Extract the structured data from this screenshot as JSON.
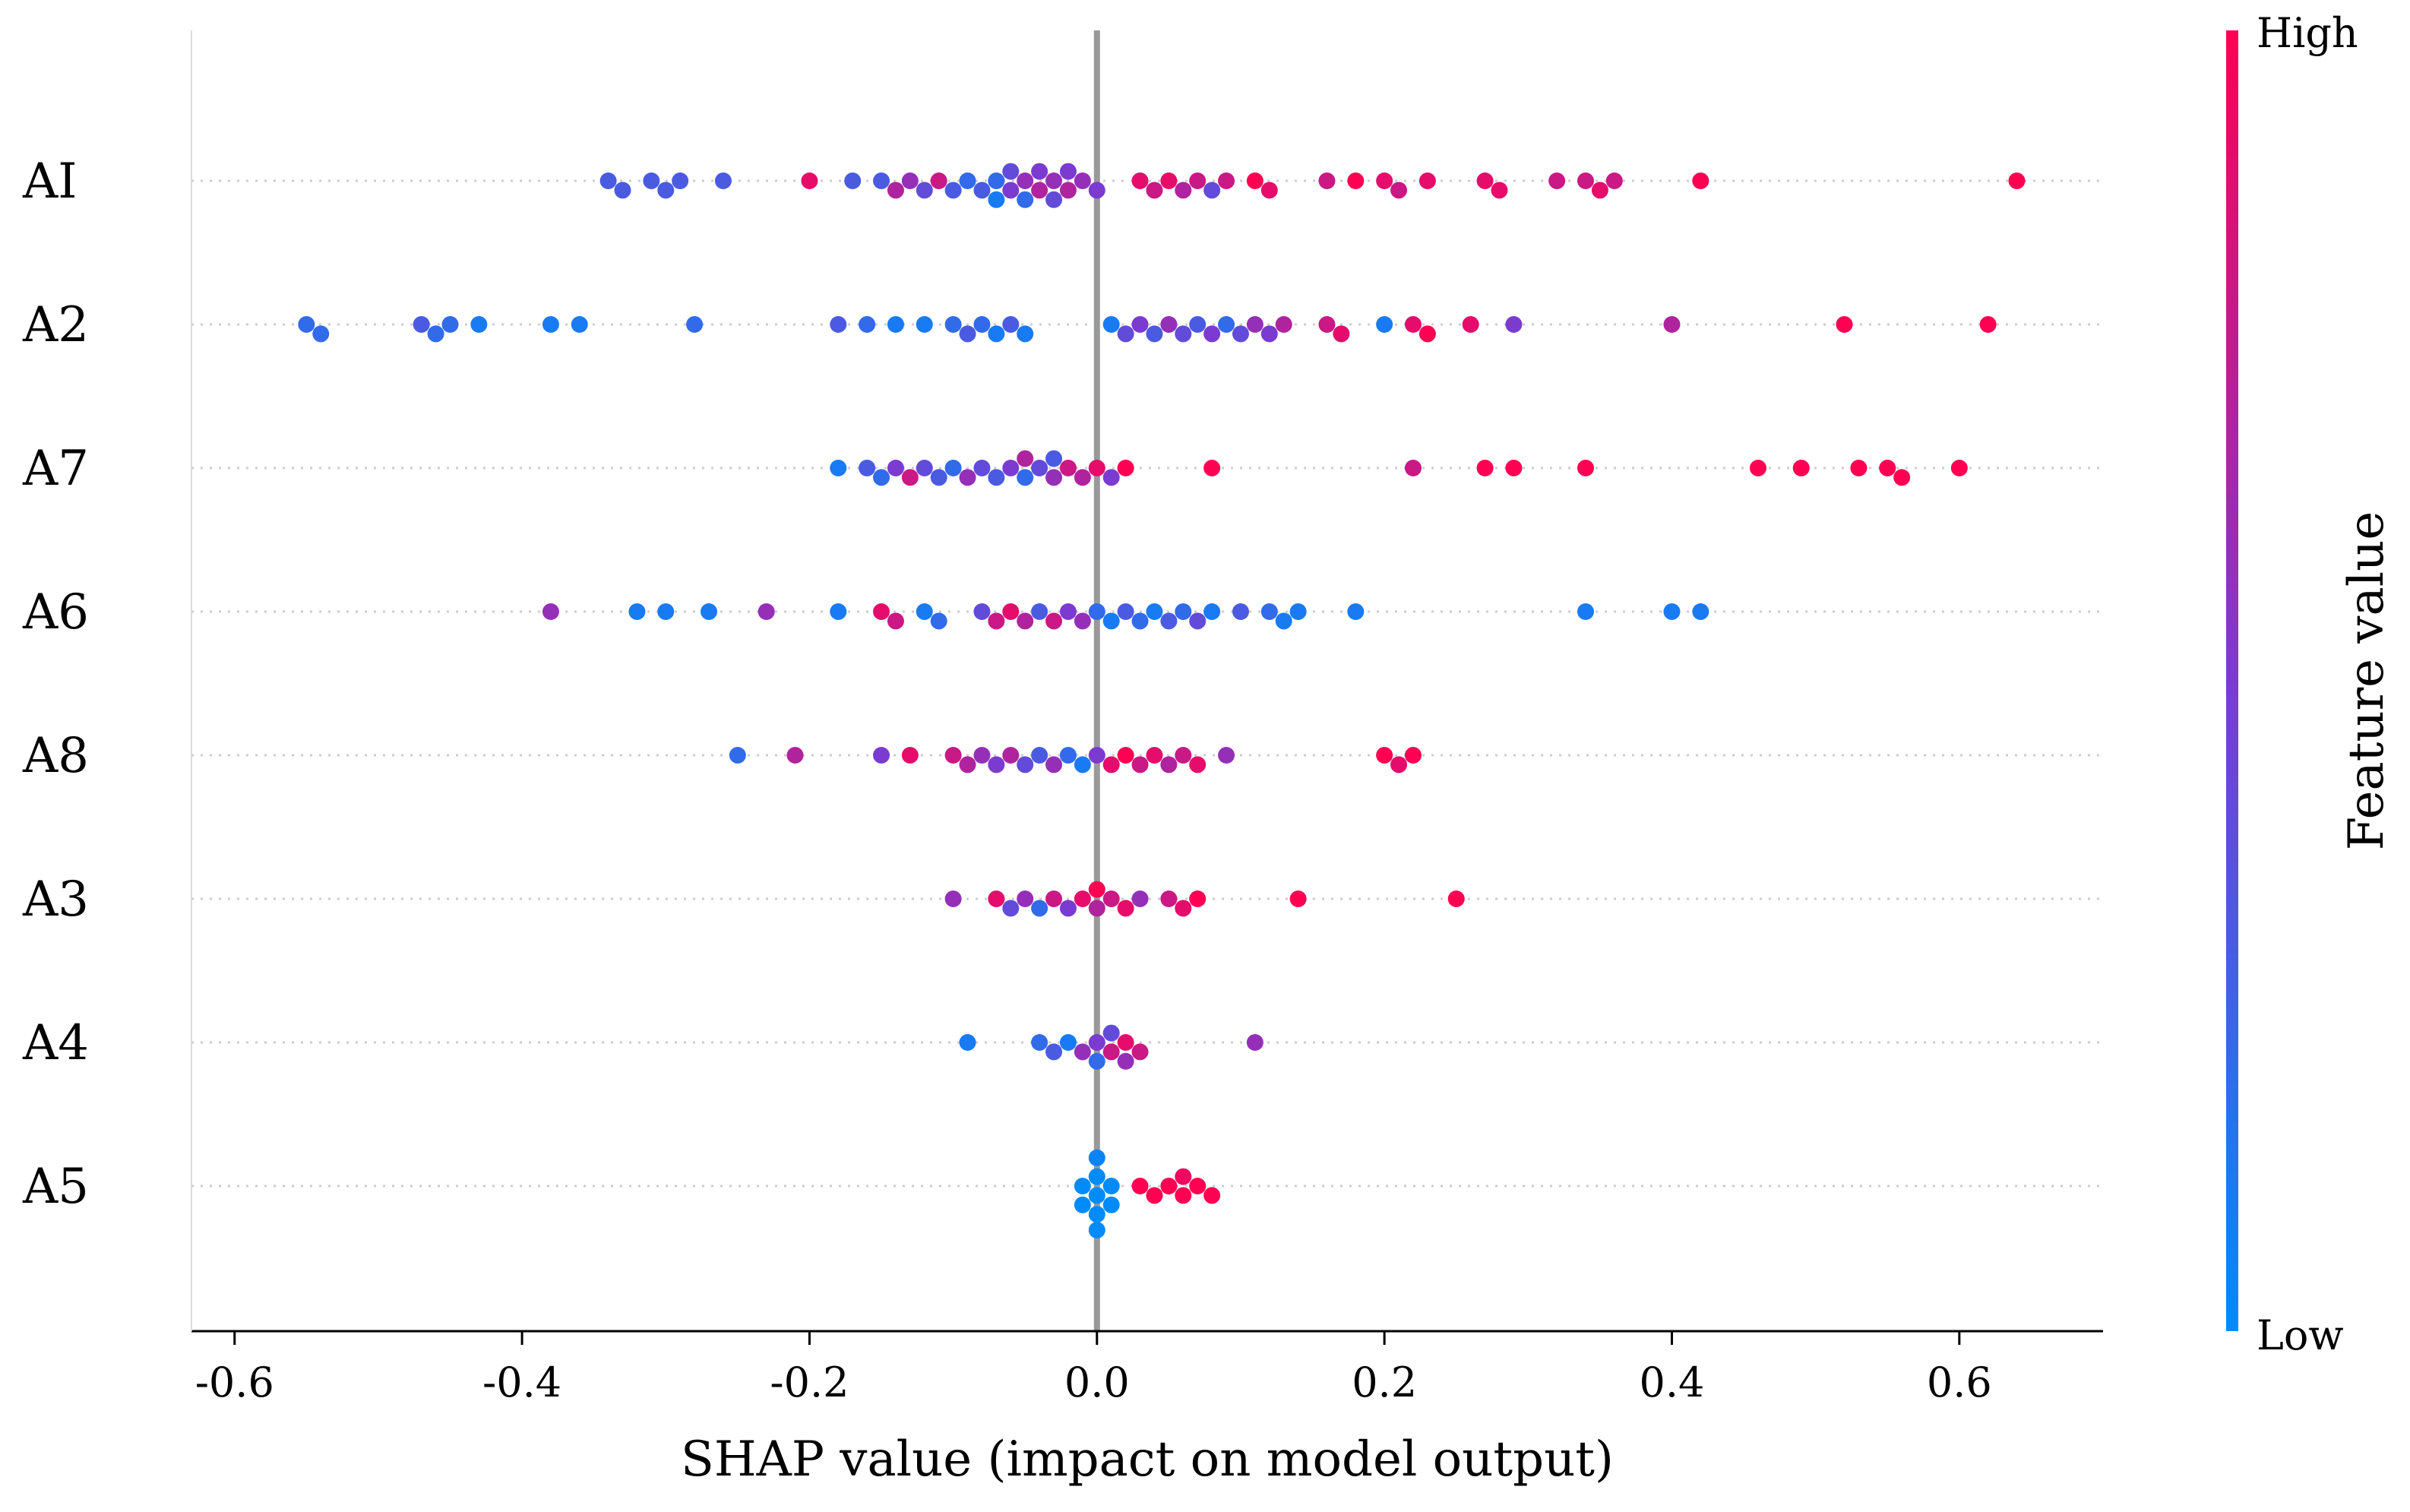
{
  "chart_data": {
    "type": "scatter",
    "subtype": "shap-beeswarm",
    "title": "",
    "xlabel": "SHAP value (impact on model output)",
    "ylabel": "",
    "xlim": [
      -0.63,
      0.7
    ],
    "xticks": [
      -0.6,
      -0.4,
      -0.2,
      0.0,
      0.2,
      0.4,
      0.6
    ],
    "xtick_labels": [
      "-0.6",
      "-0.4",
      "-0.2",
      "0.0",
      "0.2",
      "0.4",
      "0.6"
    ],
    "zero_line": 0.0,
    "grid": "dotted horizontal per feature",
    "colorbar": {
      "label": "Feature value",
      "high_label": "High",
      "low_label": "Low",
      "low_color": "#008bfb",
      "high_color": "#ff0052"
    },
    "features": [
      {
        "name": "AI",
        "points": [
          [
            -0.34,
            0.3
          ],
          [
            -0.33,
            0.3
          ],
          [
            -0.31,
            0.3
          ],
          [
            -0.3,
            0.3
          ],
          [
            -0.29,
            0.3
          ],
          [
            -0.26,
            0.3
          ],
          [
            -0.2,
            0.9
          ],
          [
            -0.17,
            0.3
          ],
          [
            -0.15,
            0.3
          ],
          [
            -0.14,
            0.7
          ],
          [
            -0.13,
            0.6
          ],
          [
            -0.12,
            0.4
          ],
          [
            -0.11,
            0.8
          ],
          [
            -0.1,
            0.3
          ],
          [
            -0.09,
            0.2
          ],
          [
            -0.08,
            0.3
          ],
          [
            -0.07,
            0.2
          ],
          [
            -0.07,
            0.1
          ],
          [
            -0.06,
            0.5
          ],
          [
            -0.06,
            0.4
          ],
          [
            -0.05,
            0.6
          ],
          [
            -0.05,
            0.2
          ],
          [
            -0.04,
            0.7
          ],
          [
            -0.04,
            0.5
          ],
          [
            -0.03,
            0.6
          ],
          [
            -0.03,
            0.4
          ],
          [
            -0.02,
            0.7
          ],
          [
            -0.02,
            0.5
          ],
          [
            -0.01,
            0.6
          ],
          [
            0.0,
            0.5
          ],
          [
            0.03,
            0.9
          ],
          [
            0.04,
            0.8
          ],
          [
            0.05,
            0.9
          ],
          [
            0.06,
            0.7
          ],
          [
            0.07,
            0.8
          ],
          [
            0.08,
            0.4
          ],
          [
            0.09,
            0.8
          ],
          [
            0.11,
            1.0
          ],
          [
            0.12,
            0.9
          ],
          [
            0.16,
            0.8
          ],
          [
            0.18,
            1.0
          ],
          [
            0.2,
            0.9
          ],
          [
            0.21,
            0.8
          ],
          [
            0.23,
            0.9
          ],
          [
            0.27,
            0.9
          ],
          [
            0.28,
            0.9
          ],
          [
            0.32,
            0.8
          ],
          [
            0.34,
            0.8
          ],
          [
            0.35,
            0.9
          ],
          [
            0.36,
            0.8
          ],
          [
            0.42,
            1.0
          ],
          [
            0.64,
            1.0
          ]
        ]
      },
      {
        "name": "A2",
        "points": [
          [
            -0.55,
            0.2
          ],
          [
            -0.54,
            0.2
          ],
          [
            -0.47,
            0.3
          ],
          [
            -0.46,
            0.2
          ],
          [
            -0.45,
            0.2
          ],
          [
            -0.43,
            0.1
          ],
          [
            -0.38,
            0.1
          ],
          [
            -0.36,
            0.1
          ],
          [
            -0.28,
            0.2
          ],
          [
            -0.18,
            0.3
          ],
          [
            -0.16,
            0.2
          ],
          [
            -0.14,
            0.1
          ],
          [
            -0.12,
            0.1
          ],
          [
            -0.1,
            0.2
          ],
          [
            -0.09,
            0.3
          ],
          [
            -0.08,
            0.2
          ],
          [
            -0.07,
            0.1
          ],
          [
            -0.06,
            0.3
          ],
          [
            -0.05,
            0.1
          ],
          [
            0.01,
            0.1
          ],
          [
            0.02,
            0.4
          ],
          [
            0.03,
            0.5
          ],
          [
            0.04,
            0.3
          ],
          [
            0.05,
            0.6
          ],
          [
            0.06,
            0.4
          ],
          [
            0.07,
            0.3
          ],
          [
            0.08,
            0.5
          ],
          [
            0.09,
            0.2
          ],
          [
            0.1,
            0.4
          ],
          [
            0.11,
            0.6
          ],
          [
            0.12,
            0.5
          ],
          [
            0.13,
            0.7
          ],
          [
            0.16,
            0.8
          ],
          [
            0.17,
            0.9
          ],
          [
            0.2,
            0.1
          ],
          [
            0.22,
            0.9
          ],
          [
            0.23,
            1.0
          ],
          [
            0.26,
            0.9
          ],
          [
            0.29,
            0.5
          ],
          [
            0.4,
            0.7
          ],
          [
            0.52,
            1.0
          ],
          [
            0.62,
            1.0
          ]
        ]
      },
      {
        "name": "A7",
        "points": [
          [
            -0.18,
            0.1
          ],
          [
            -0.16,
            0.3
          ],
          [
            -0.15,
            0.2
          ],
          [
            -0.14,
            0.5
          ],
          [
            -0.13,
            0.8
          ],
          [
            -0.12,
            0.4
          ],
          [
            -0.11,
            0.3
          ],
          [
            -0.1,
            0.2
          ],
          [
            -0.09,
            0.6
          ],
          [
            -0.08,
            0.4
          ],
          [
            -0.07,
            0.3
          ],
          [
            -0.06,
            0.5
          ],
          [
            -0.05,
            0.2
          ],
          [
            -0.05,
            0.7
          ],
          [
            -0.04,
            0.4
          ],
          [
            -0.03,
            0.6
          ],
          [
            -0.03,
            0.3
          ],
          [
            -0.02,
            0.8
          ],
          [
            -0.01,
            0.7
          ],
          [
            0.0,
            0.9
          ],
          [
            0.01,
            0.5
          ],
          [
            0.02,
            1.0
          ],
          [
            0.08,
            1.0
          ],
          [
            0.22,
            0.8
          ],
          [
            0.27,
            1.0
          ],
          [
            0.29,
            1.0
          ],
          [
            0.34,
            1.0
          ],
          [
            0.46,
            1.0
          ],
          [
            0.49,
            1.0
          ],
          [
            0.53,
            1.0
          ],
          [
            0.55,
            1.0
          ],
          [
            0.56,
            1.0
          ],
          [
            0.6,
            1.0
          ]
        ]
      },
      {
        "name": "A6",
        "points": [
          [
            -0.38,
            0.6
          ],
          [
            -0.32,
            0.1
          ],
          [
            -0.3,
            0.1
          ],
          [
            -0.27,
            0.1
          ],
          [
            -0.23,
            0.6
          ],
          [
            -0.18,
            0.1
          ],
          [
            -0.15,
            0.9
          ],
          [
            -0.14,
            0.8
          ],
          [
            -0.12,
            0.1
          ],
          [
            -0.11,
            0.2
          ],
          [
            -0.08,
            0.4
          ],
          [
            -0.07,
            0.8
          ],
          [
            -0.06,
            0.9
          ],
          [
            -0.05,
            0.7
          ],
          [
            -0.04,
            0.3
          ],
          [
            -0.03,
            0.8
          ],
          [
            -0.02,
            0.5
          ],
          [
            -0.01,
            0.6
          ],
          [
            0.0,
            0.2
          ],
          [
            0.01,
            0.1
          ],
          [
            0.02,
            0.3
          ],
          [
            0.03,
            0.2
          ],
          [
            0.04,
            0.1
          ],
          [
            0.05,
            0.3
          ],
          [
            0.06,
            0.2
          ],
          [
            0.07,
            0.4
          ],
          [
            0.08,
            0.1
          ],
          [
            0.1,
            0.3
          ],
          [
            0.12,
            0.2
          ],
          [
            0.13,
            0.1
          ],
          [
            0.14,
            0.1
          ],
          [
            0.18,
            0.1
          ],
          [
            0.34,
            0.1
          ],
          [
            0.4,
            0.1
          ],
          [
            0.42,
            0.1
          ]
        ]
      },
      {
        "name": "A8",
        "points": [
          [
            -0.25,
            0.2
          ],
          [
            -0.21,
            0.7
          ],
          [
            -0.15,
            0.5
          ],
          [
            -0.13,
            0.9
          ],
          [
            -0.1,
            0.8
          ],
          [
            -0.09,
            0.7
          ],
          [
            -0.08,
            0.6
          ],
          [
            -0.07,
            0.5
          ],
          [
            -0.06,
            0.7
          ],
          [
            -0.05,
            0.4
          ],
          [
            -0.04,
            0.3
          ],
          [
            -0.03,
            0.6
          ],
          [
            -0.02,
            0.2
          ],
          [
            -0.01,
            0.1
          ],
          [
            0.0,
            0.5
          ],
          [
            0.01,
            0.9
          ],
          [
            0.02,
            1.0
          ],
          [
            0.03,
            0.8
          ],
          [
            0.04,
            0.9
          ],
          [
            0.05,
            0.7
          ],
          [
            0.06,
            0.8
          ],
          [
            0.07,
            0.9
          ],
          [
            0.09,
            0.6
          ],
          [
            0.2,
            1.0
          ],
          [
            0.21,
            0.9
          ],
          [
            0.22,
            1.0
          ]
        ]
      },
      {
        "name": "A3",
        "points": [
          [
            -0.1,
            0.6
          ],
          [
            -0.07,
            0.9
          ],
          [
            -0.06,
            0.4
          ],
          [
            -0.05,
            0.6
          ],
          [
            -0.04,
            0.2
          ],
          [
            -0.03,
            0.8
          ],
          [
            -0.02,
            0.5
          ],
          [
            -0.01,
            0.9
          ],
          [
            0.0,
            0.7
          ],
          [
            0.0,
            1.0
          ],
          [
            0.01,
            0.8
          ],
          [
            0.02,
            0.9
          ],
          [
            0.03,
            0.6
          ],
          [
            0.05,
            0.8
          ],
          [
            0.06,
            0.9
          ],
          [
            0.07,
            1.0
          ],
          [
            0.14,
            1.0
          ],
          [
            0.25,
            1.0
          ]
        ]
      },
      {
        "name": "A4",
        "points": [
          [
            -0.09,
            0.1
          ],
          [
            -0.04,
            0.2
          ],
          [
            -0.03,
            0.3
          ],
          [
            -0.02,
            0.1
          ],
          [
            -0.01,
            0.6
          ],
          [
            0.0,
            0.5
          ],
          [
            0.0,
            0.2
          ],
          [
            0.01,
            0.8
          ],
          [
            0.01,
            0.4
          ],
          [
            0.02,
            0.9
          ],
          [
            0.02,
            0.6
          ],
          [
            0.03,
            0.8
          ],
          [
            0.11,
            0.6
          ]
        ]
      },
      {
        "name": "A5",
        "points": [
          [
            -0.01,
            0.0
          ],
          [
            -0.01,
            0.0
          ],
          [
            0.0,
            0.0
          ],
          [
            0.0,
            0.0
          ],
          [
            0.0,
            0.0
          ],
          [
            0.0,
            0.05
          ],
          [
            0.0,
            0.0
          ],
          [
            0.01,
            0.0
          ],
          [
            0.01,
            0.0
          ],
          [
            0.03,
            1.0
          ],
          [
            0.04,
            1.0
          ],
          [
            0.05,
            1.0
          ],
          [
            0.06,
            1.0
          ],
          [
            0.06,
            0.95
          ],
          [
            0.07,
            1.0
          ],
          [
            0.08,
            1.0
          ]
        ]
      }
    ]
  }
}
